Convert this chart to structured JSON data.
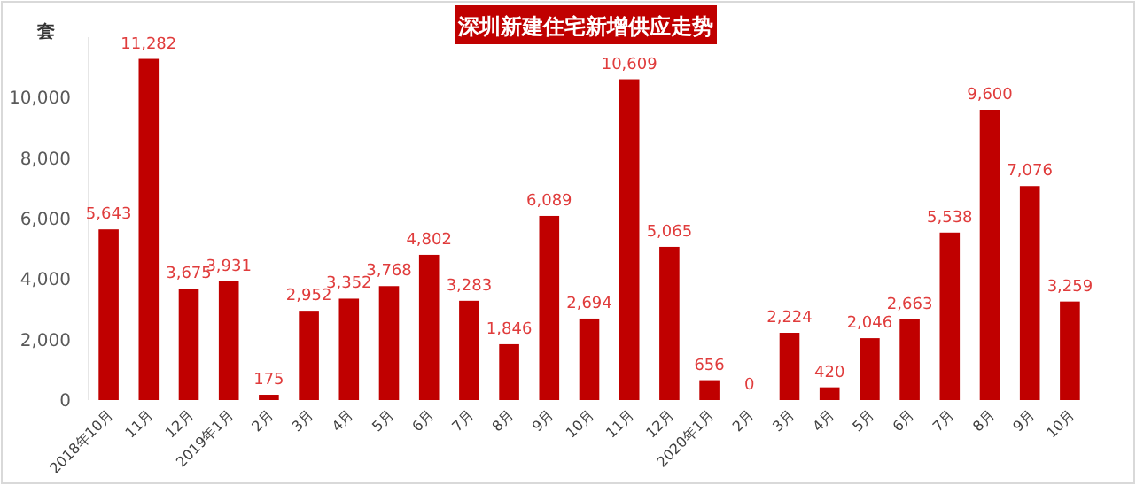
{
  "chart_data": {
    "type": "bar",
    "title": "深圳新建住宅新增供应走势",
    "ylabel": "套",
    "categories": [
      "2018年10月",
      "11月",
      "12月",
      "2019年1月",
      "2月",
      "3月",
      "4月",
      "5月",
      "6月",
      "7月",
      "8月",
      "9月",
      "10月",
      "11月",
      "12月",
      "2020年1月",
      "2月",
      "3月",
      "4月",
      "5月",
      "6月",
      "7月",
      "8月",
      "9月",
      "10月"
    ],
    "values": [
      5643,
      11282,
      3675,
      3931,
      175,
      2952,
      3352,
      3768,
      4802,
      3283,
      1846,
      6089,
      2694,
      10609,
      5065,
      656,
      0,
      2224,
      420,
      2046,
      2663,
      5538,
      9600,
      7076,
      3259
    ],
    "value_labels": [
      "5,643",
      "11,282",
      "3,675",
      "3,931",
      "175",
      "2,952",
      "3,352",
      "3,768",
      "4,802",
      "3,283",
      "1,846",
      "6,089",
      "2,694",
      "10,609",
      "5,065",
      "656",
      "0",
      "2,224",
      "420",
      "2,046",
      "2,663",
      "5,538",
      "9,600",
      "7,076",
      "3,259"
    ],
    "color": "#c00000",
    "ylim": [
      0,
      12000
    ],
    "yticks": [
      {
        "value": 0,
        "label": "0"
      },
      {
        "value": 2000,
        "label": "2,000"
      },
      {
        "value": 4000,
        "label": "4,000"
      },
      {
        "value": 6000,
        "label": "6,000"
      },
      {
        "value": 8000,
        "label": "8,000"
      },
      {
        "value": 10000,
        "label": "10,000"
      }
    ],
    "grid": false
  }
}
